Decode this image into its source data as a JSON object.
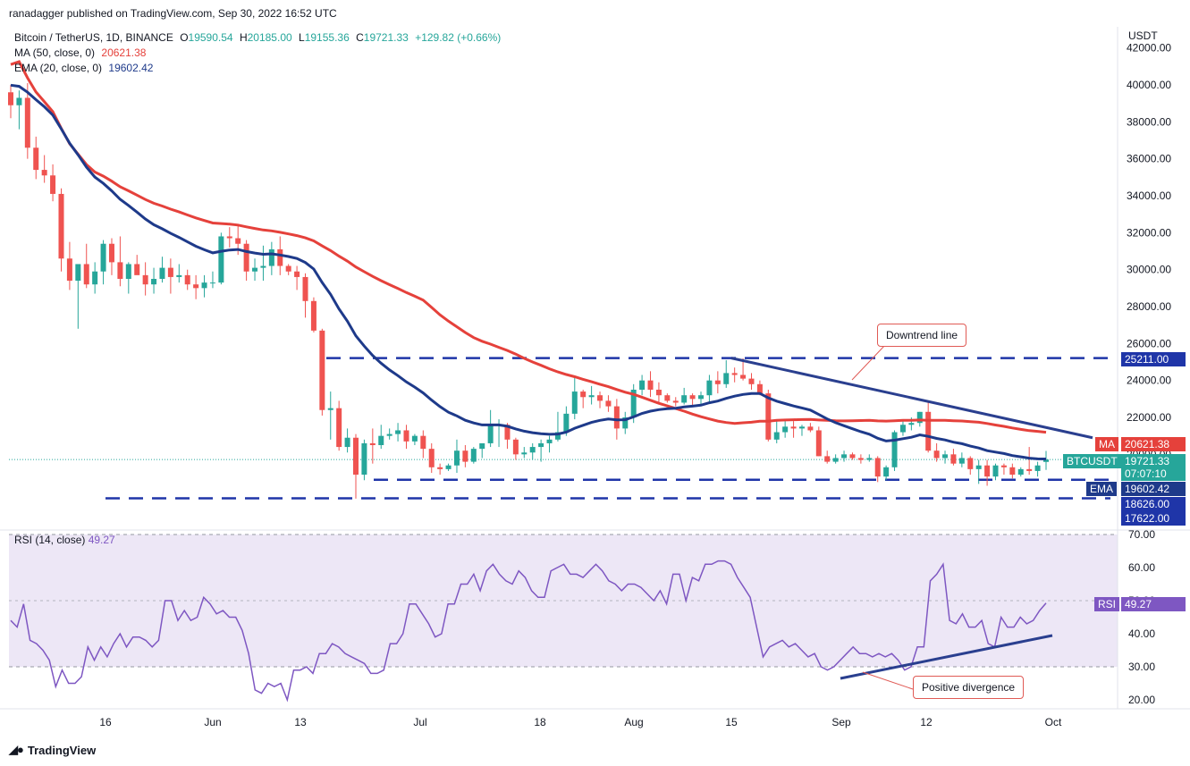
{
  "header": {
    "publisher_line": "ranadagger published on TradingView.com, Sep 30, 2022 16:52 UTC"
  },
  "legend": {
    "symbol": "Bitcoin / TetherUS, 1D, BINANCE",
    "o_label": "O",
    "o": "19590.54",
    "h_label": "H",
    "h": "20185.00",
    "l_label": "L",
    "l": "19155.36",
    "c_label": "C",
    "c": "19721.33",
    "change": "+129.82 (+0.66%)",
    "ma_label": "MA (50, close, 0)",
    "ma_value": "20621.38",
    "ema_label": "EMA (20, close, 0)",
    "ema_value": "19602.42"
  },
  "rsi_legend": {
    "label": "RSI (14, close)",
    "value": "49.27"
  },
  "footer": {
    "logo_text": "TradingView"
  },
  "colors": {
    "up": "#26a69a",
    "down": "#ef5350",
    "ma": "#e5413b",
    "ema": "#1e3a8a",
    "trend": "#2a3f8f",
    "level": "#1f35a8",
    "rsi_line": "#7e57c2",
    "rsi_band": "#ede7f6"
  },
  "chart_data": [
    {
      "type": "candlestick",
      "title": "Bitcoin / TetherUS, 1D, BINANCE",
      "yaxis_unit": "USDT",
      "ylim": [
        16500,
        42500
      ],
      "y_ticks": [
        "42000.00",
        "40000.00",
        "38000.00",
        "36000.00",
        "34000.00",
        "32000.00",
        "30000.00",
        "28000.00",
        "26000.00",
        "24000.00",
        "22000.00",
        "20000.00"
      ],
      "x_ticks": [
        "16",
        "Jun",
        "13",
        "Jul",
        "18",
        "Aug",
        "15",
        "Sep",
        "12",
        "Oct"
      ],
      "grid": false,
      "ohlc_daily": [
        [
          39600,
          40000,
          38200,
          38900
        ],
        [
          38900,
          39700,
          37600,
          39300
        ],
        [
          39300,
          40100,
          36000,
          36600
        ],
        [
          36600,
          37200,
          34900,
          35400
        ],
        [
          35400,
          36200,
          34700,
          35100
        ],
        [
          35100,
          35700,
          33700,
          34100
        ],
        [
          34100,
          34400,
          29900,
          30600
        ],
        [
          30600,
          31500,
          28900,
          29400
        ],
        [
          29400,
          30100,
          26800,
          30300
        ],
        [
          30300,
          31400,
          29000,
          29200
        ],
        [
          29200,
          30400,
          28700,
          29900
        ],
        [
          29900,
          31600,
          29200,
          31400
        ],
        [
          31400,
          31700,
          29700,
          30400
        ],
        [
          30400,
          31800,
          29100,
          29500
        ],
        [
          29500,
          30400,
          28700,
          30300
        ],
        [
          30300,
          30800,
          29800,
          29700
        ],
        [
          29700,
          30400,
          28600,
          29200
        ],
        [
          29200,
          30100,
          28700,
          29500
        ],
        [
          29500,
          30700,
          29300,
          30100
        ],
        [
          30100,
          30600,
          28700,
          29600
        ],
        [
          29600,
          30300,
          29300,
          29700
        ],
        [
          29700,
          30000,
          28900,
          29200
        ],
        [
          29200,
          29700,
          28400,
          29000
        ],
        [
          29000,
          29700,
          28500,
          29300
        ],
        [
          29300,
          29900,
          29000,
          29300
        ],
        [
          29300,
          32000,
          29200,
          31800
        ],
        [
          31800,
          32300,
          31200,
          31700
        ],
        [
          31700,
          32400,
          30800,
          31400
        ],
        [
          31400,
          31600,
          29400,
          29900
        ],
        [
          29900,
          30600,
          29400,
          30100
        ],
        [
          30100,
          31300,
          29400,
          30200
        ],
        [
          30200,
          31500,
          29700,
          31100
        ],
        [
          31100,
          31800,
          29700,
          30200
        ],
        [
          30200,
          30300,
          29700,
          29900
        ],
        [
          29900,
          30200,
          28900,
          29600
        ],
        [
          29600,
          29800,
          27400,
          28300
        ],
        [
          28300,
          28500,
          26600,
          26700
        ],
        [
          26700,
          26800,
          22100,
          22400
        ],
        [
          22400,
          23400,
          20800,
          22500
        ],
        [
          22500,
          22900,
          20200,
          20400
        ],
        [
          20400,
          21400,
          20100,
          20900
        ],
        [
          20900,
          21100,
          17600,
          18900
        ],
        [
          18900,
          20800,
          18600,
          20600
        ],
        [
          20600,
          21400,
          19500,
          20500
        ],
        [
          20500,
          21600,
          20300,
          21000
        ],
        [
          21000,
          21400,
          20800,
          21100
        ],
        [
          21100,
          21700,
          20700,
          21300
        ],
        [
          21300,
          21600,
          20300,
          20700
        ],
        [
          20700,
          21100,
          20500,
          21000
        ],
        [
          21000,
          21300,
          19800,
          20300
        ],
        [
          20300,
          20600,
          19000,
          19300
        ],
        [
          19300,
          19500,
          18900,
          19200
        ],
        [
          19200,
          19500,
          19100,
          19400
        ],
        [
          19400,
          20800,
          19000,
          20200
        ],
        [
          20200,
          20500,
          19300,
          19600
        ],
        [
          19600,
          20400,
          19500,
          20300
        ],
        [
          20300,
          20500,
          19800,
          20600
        ],
        [
          20600,
          22400,
          20400,
          21600
        ],
        [
          21600,
          21900,
          20400,
          21600
        ],
        [
          21600,
          21700,
          20300,
          20800
        ],
        [
          20800,
          20900,
          19700,
          20000
        ],
        [
          20000,
          20400,
          19800,
          20100
        ],
        [
          20100,
          20600,
          19700,
          20400
        ],
        [
          20400,
          20800,
          19600,
          20600
        ],
        [
          20600,
          21000,
          20100,
          20800
        ],
        [
          20800,
          22300,
          20700,
          21200
        ],
        [
          21200,
          22600,
          21000,
          22200
        ],
        [
          22200,
          24200,
          21900,
          23400
        ],
        [
          23400,
          23500,
          22500,
          23100
        ],
        [
          23100,
          23700,
          22700,
          23200
        ],
        [
          23200,
          23400,
          22500,
          22900
        ],
        [
          22900,
          23200,
          22300,
          22600
        ],
        [
          22600,
          23000,
          20800,
          21400
        ],
        [
          21400,
          22300,
          21100,
          22000
        ],
        [
          22000,
          23800,
          21700,
          23500
        ],
        [
          23500,
          24300,
          23200,
          24000
        ],
        [
          24000,
          24500,
          23100,
          23500
        ],
        [
          23500,
          23900,
          22700,
          23200
        ],
        [
          23200,
          23300,
          22800,
          22900
        ],
        [
          22900,
          23100,
          22600,
          22800
        ],
        [
          22800,
          23600,
          22700,
          23200
        ],
        [
          23200,
          23300,
          22600,
          23000
        ],
        [
          23000,
          23400,
          22700,
          23200
        ],
        [
          23200,
          24300,
          22800,
          24000
        ],
        [
          24000,
          24500,
          23300,
          23800
        ],
        [
          23800,
          25100,
          23600,
          24400
        ],
        [
          24400,
          24700,
          23900,
          24300
        ],
        [
          24300,
          25200,
          24000,
          24100
        ],
        [
          24100,
          24400,
          23500,
          23800
        ],
        [
          23800,
          24000,
          23200,
          23300
        ],
        [
          23300,
          23500,
          20700,
          20800
        ],
        [
          20800,
          21900,
          20600,
          21200
        ],
        [
          21200,
          21800,
          20900,
          21500
        ],
        [
          21500,
          21800,
          20900,
          21400
        ],
        [
          21400,
          21600,
          21000,
          21500
        ],
        [
          21500,
          21700,
          21200,
          21300
        ],
        [
          21300,
          21500,
          19900,
          19900
        ],
        [
          19900,
          20200,
          19500,
          19600
        ],
        [
          19600,
          20000,
          19500,
          19800
        ],
        [
          19800,
          20200,
          19600,
          20000
        ],
        [
          20000,
          20100,
          19700,
          19800
        ],
        [
          19800,
          20000,
          19500,
          19700
        ],
        [
          19700,
          20000,
          19600,
          19800
        ],
        [
          19800,
          19900,
          18500,
          18800
        ],
        [
          18800,
          19400,
          18600,
          19300
        ],
        [
          19300,
          21300,
          19100,
          21200
        ],
        [
          21200,
          21800,
          21000,
          21600
        ],
        [
          21600,
          22000,
          21300,
          21700
        ],
        [
          21700,
          22300,
          21500,
          22300
        ],
        [
          22300,
          22800,
          20100,
          20200
        ],
        [
          20200,
          20600,
          19600,
          19800
        ],
        [
          19800,
          20200,
          19500,
          20000
        ],
        [
          20000,
          20300,
          19400,
          19500
        ],
        [
          19500,
          20100,
          19300,
          19800
        ],
        [
          19800,
          19900,
          18900,
          19200
        ],
        [
          19200,
          19700,
          18400,
          19400
        ],
        [
          19400,
          19700,
          18300,
          18800
        ],
        [
          18800,
          19500,
          18600,
          19400
        ],
        [
          19400,
          19500,
          18900,
          19300
        ],
        [
          19300,
          19500,
          18700,
          18900
        ],
        [
          18900,
          19300,
          18800,
          19200
        ],
        [
          19200,
          20400,
          18900,
          19100
        ],
        [
          19100,
          19600,
          18800,
          19400
        ],
        [
          19590.54,
          20185,
          19155.36,
          19721.33
        ]
      ]
    },
    {
      "type": "line",
      "title": "",
      "ylim": [
        17,
        73
      ],
      "y_ticks": [
        "70.00",
        "60.00",
        "50.00",
        "40.00",
        "30.00",
        "20.00"
      ],
      "x_ticks": [
        "16",
        "Jun",
        "13",
        "Jul",
        "18",
        "Aug",
        "15",
        "Sep",
        "12",
        "Oct"
      ],
      "bands": [
        30,
        70
      ],
      "mid_line": 50,
      "series": [
        {
          "name": "RSI (14, close)",
          "values": [
            44,
            42,
            49,
            38,
            37,
            35,
            32,
            24,
            29,
            25,
            25,
            27,
            36,
            32,
            36,
            33,
            37,
            40,
            36,
            39,
            39,
            38,
            36,
            38,
            50,
            50,
            44,
            47,
            44,
            45,
            51,
            49,
            46,
            47,
            45,
            45,
            41,
            34,
            23,
            22,
            25,
            24,
            25,
            20,
            29,
            29,
            30,
            28,
            34,
            34,
            37,
            36,
            34,
            33,
            32,
            31,
            28,
            28,
            29,
            37,
            37,
            40,
            49,
            49,
            46,
            43,
            39,
            40,
            49,
            49,
            55,
            55,
            58,
            53,
            59,
            61,
            58,
            56,
            55,
            59,
            57,
            53,
            51,
            51,
            59,
            60,
            61,
            58,
            58,
            57,
            59,
            61,
            59,
            56,
            55,
            53,
            55,
            55,
            54,
            52,
            50,
            53,
            49,
            58,
            58,
            50,
            57,
            56,
            61,
            61,
            62,
            62,
            61,
            57,
            54,
            51,
            42,
            33,
            36,
            37,
            38,
            36,
            37,
            35,
            33,
            34,
            30,
            29,
            30,
            32,
            34,
            36,
            34,
            34,
            33,
            34,
            33,
            34,
            32,
            29,
            30,
            36,
            36,
            56,
            58,
            61,
            44,
            43,
            46,
            42,
            42,
            44,
            37,
            36,
            45,
            42,
            42,
            45,
            43,
            44,
            47,
            49.27
          ]
        }
      ]
    }
  ],
  "price_tags": {
    "ma": {
      "label": "MA",
      "value": "20621.38"
    },
    "symbol": {
      "label": "BTCUSDT",
      "value": "19721.33",
      "countdown": "07:07:10"
    },
    "ema": {
      "label": "EMA",
      "value": "19602.42"
    },
    "level_high": "25211.00",
    "level_mid": "18626.00",
    "level_low": "17622.00",
    "rsi": {
      "label": "RSI",
      "value": "49.27"
    }
  },
  "annotations": {
    "downtrend": "Downtrend line",
    "divergence": "Positive divergence"
  }
}
